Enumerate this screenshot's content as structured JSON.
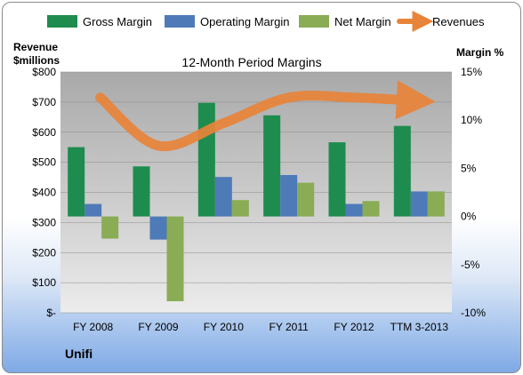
{
  "chart_data": {
    "type": "bar",
    "title": "12-Month Period Margins",
    "company": "Unifi",
    "y_left_label": [
      "Revenue",
      "$millions"
    ],
    "y_right_label": "Margin %",
    "y_left_ticks": [
      "$-",
      "$100",
      "$200",
      "$300",
      "$400",
      "$500",
      "$600",
      "$700",
      "$800"
    ],
    "y_right_ticks": [
      "-10%",
      "-5%",
      "0%",
      "5%",
      "10%",
      "15%"
    ],
    "ylim_left": [
      0,
      800
    ],
    "ylim_right": [
      -10,
      15
    ],
    "categories": [
      "FY 2008",
      "FY 2009",
      "FY 2010",
      "FY 2011",
      "FY 2012",
      "TTM 3-2013"
    ],
    "legend_position": "top",
    "series": [
      {
        "name": "Gross Margin",
        "kind": "bar",
        "axis": "right",
        "color": "#1e8c4e",
        "values": [
          7.2,
          5.2,
          11.8,
          10.5,
          7.7,
          9.4
        ]
      },
      {
        "name": "Operating Margin",
        "kind": "bar",
        "axis": "right",
        "color": "#4e7ab8",
        "values": [
          1.3,
          -2.4,
          4.1,
          4.3,
          1.3,
          2.6
        ]
      },
      {
        "name": "Net Margin",
        "kind": "bar",
        "axis": "right",
        "color": "#8aac55",
        "values": [
          -2.3,
          -8.8,
          1.7,
          3.5,
          1.6,
          2.6
        ]
      },
      {
        "name": "Revenues",
        "kind": "line",
        "axis": "left",
        "color": "#e8843a",
        "values": [
          715,
          555,
          630,
          715,
          715,
          705
        ]
      }
    ]
  }
}
